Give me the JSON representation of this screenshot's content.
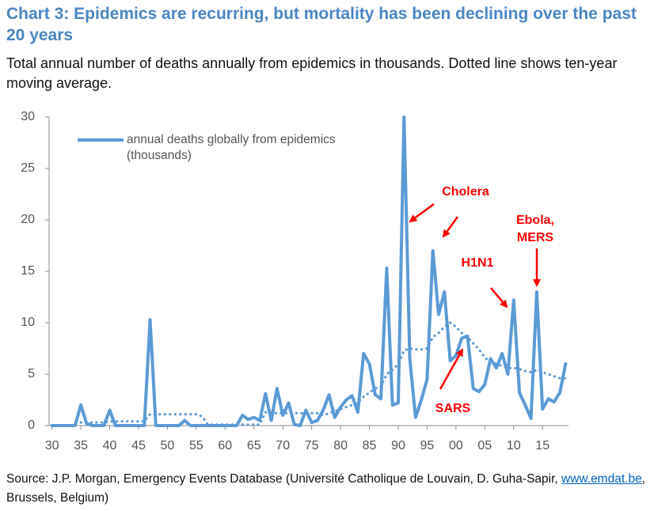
{
  "chart_data": {
    "type": "line",
    "title": "Chart 3: Epidemics are recurring, but mortality has been declining over the past 20 years",
    "subtitle": "Total annual number of deaths annually from epidemics in thousands. Dotted line shows ten-year moving average.",
    "x": [
      1930,
      1931,
      1932,
      1933,
      1934,
      1935,
      1936,
      1937,
      1938,
      1939,
      1940,
      1941,
      1942,
      1943,
      1944,
      1945,
      1946,
      1947,
      1948,
      1949,
      1950,
      1951,
      1952,
      1953,
      1954,
      1955,
      1956,
      1957,
      1958,
      1959,
      1960,
      1961,
      1962,
      1963,
      1964,
      1965,
      1966,
      1967,
      1968,
      1969,
      1970,
      1971,
      1972,
      1973,
      1974,
      1975,
      1976,
      1977,
      1978,
      1979,
      1980,
      1981,
      1982,
      1983,
      1984,
      1985,
      1986,
      1987,
      1988,
      1989,
      1990,
      1991,
      1992,
      1993,
      1994,
      1995,
      1996,
      1997,
      1998,
      1999,
      2000,
      2001,
      2002,
      2003,
      2004,
      2005,
      2006,
      2007,
      2008,
      2009,
      2010,
      2011,
      2012,
      2013,
      2014,
      2015,
      2016,
      2017,
      2018,
      2019
    ],
    "series": [
      {
        "name": "annual deaths globally from epidemics (thousands)",
        "color": "#5b9bd5",
        "style": "solid",
        "values": [
          0,
          0,
          0,
          0,
          0,
          2,
          0.2,
          0,
          0,
          0,
          1.5,
          0,
          0,
          0,
          0,
          0,
          0,
          10.3,
          0,
          0,
          0,
          0,
          0,
          0.5,
          0,
          0,
          0,
          0,
          0,
          0,
          0,
          0,
          0,
          1,
          0.6,
          0.8,
          0.5,
          3.1,
          0.5,
          3.6,
          1,
          2.2,
          0.1,
          0,
          1.5,
          0.3,
          0.5,
          1.5,
          3,
          0.8,
          1.8,
          2.5,
          2.9,
          1.3,
          7,
          6,
          3,
          2.6,
          15.3,
          2,
          2.2,
          30,
          6.5,
          0.8,
          2.5,
          4.5,
          17,
          10.8,
          13,
          6.3,
          6.8,
          8.5,
          8.7,
          3.6,
          3.3,
          4,
          6.5,
          5.6,
          7,
          5,
          12.2,
          3.2,
          2,
          0.7,
          13,
          1.6,
          2.6,
          2.3,
          3.2,
          6
        ]
      },
      {
        "color": "#5b9bd5",
        "style": "dotted",
        "values": [
          null,
          null,
          null,
          null,
          null,
          0.3,
          0.3,
          0.3,
          0.3,
          0.3,
          0.4,
          0.4,
          0.4,
          0.4,
          0.4,
          0.4,
          0.4,
          1.1,
          1.1,
          1.1,
          1.1,
          1.1,
          1.1,
          1.1,
          1.1,
          1.1,
          0.9,
          0.1,
          0.1,
          0.1,
          0.1,
          0.1,
          0.1,
          0.1,
          0.1,
          0.1,
          0.1,
          1.3,
          1.2,
          1.2,
          1.2,
          1.2,
          1.2,
          1.2,
          1.2,
          1.2,
          1.2,
          1.0,
          1.2,
          1.4,
          1.6,
          1.8,
          2.0,
          2.2,
          2.8,
          3.2,
          3.6,
          3.8,
          5.0,
          5.4,
          6.0,
          7.3,
          7.5,
          7.4,
          7.4,
          7.5,
          8.6,
          9.0,
          9.6,
          10.0,
          9.6,
          9.0,
          8.6,
          8.0,
          7.4,
          6.6,
          6.2,
          6.0,
          5.8,
          5.6,
          5.6,
          5.5,
          5.3,
          5.2,
          5.4,
          5.2,
          5.0,
          4.8,
          4.6,
          4.6
        ]
      }
    ],
    "xlim": [
      1929.5,
      2019.5
    ],
    "xticks": [
      {
        "value": 1930,
        "label": "30"
      },
      {
        "value": 1935,
        "label": "35"
      },
      {
        "value": 1940,
        "label": "40"
      },
      {
        "value": 1945,
        "label": "45"
      },
      {
        "value": 1950,
        "label": "50"
      },
      {
        "value": 1955,
        "label": "55"
      },
      {
        "value": 1960,
        "label": "60"
      },
      {
        "value": 1965,
        "label": "65"
      },
      {
        "value": 1970,
        "label": "70"
      },
      {
        "value": 1975,
        "label": "75"
      },
      {
        "value": 1980,
        "label": "80"
      },
      {
        "value": 1985,
        "label": "85"
      },
      {
        "value": 1990,
        "label": "90"
      },
      {
        "value": 1995,
        "label": "95"
      },
      {
        "value": 2000,
        "label": "00"
      },
      {
        "value": 2005,
        "label": "05"
      },
      {
        "value": 2010,
        "label": "10"
      },
      {
        "value": 2015,
        "label": "15"
      }
    ],
    "ylim": [
      0,
      30
    ],
    "yticks": [
      0,
      5,
      10,
      15,
      20,
      25,
      30
    ],
    "legend": "upper left",
    "annotations": [
      {
        "lines": [
          "Cholera"
        ]
      },
      {
        "lines": [
          "H1N1"
        ]
      },
      {
        "lines": [
          "Ebola,",
          "MERS"
        ]
      },
      {
        "lines": [
          "SARS"
        ]
      }
    ],
    "annotation_color": "#ff0000",
    "source": {
      "before": "Source: J.P. Morgan, Emergency Events Database (Université Catholique de Louvain, D. Guha-Sapir, ",
      "link": "www.emdat.be",
      "after": ", Brussels, Belgium)"
    }
  }
}
